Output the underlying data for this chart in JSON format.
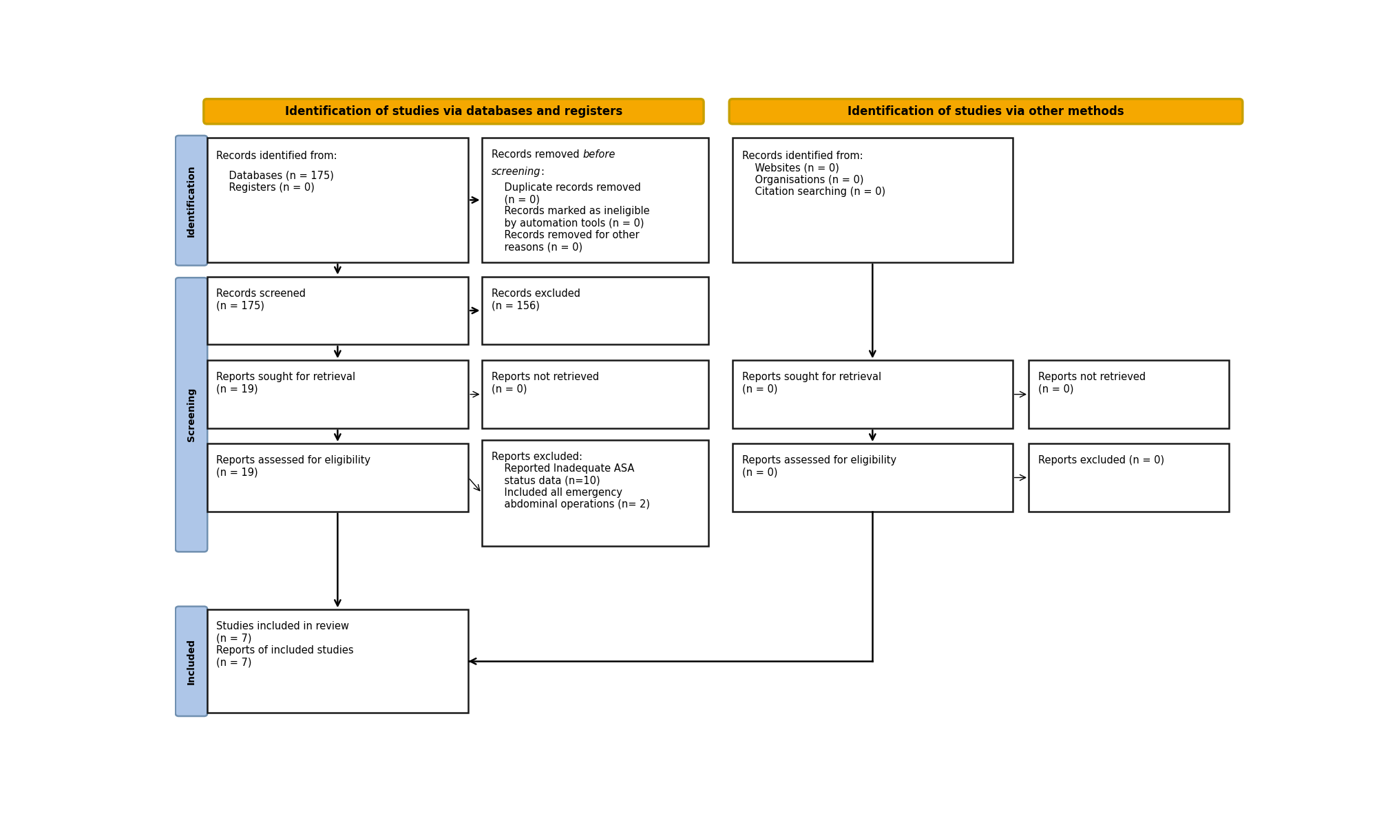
{
  "title_left": "Identification of studies via databases and registers",
  "title_right": "Identification of studies via other methods",
  "title_bg": "#F5A800",
  "title_border": "#C8A000",
  "sidebar_bg": "#AEC6E8",
  "sidebar_border": "#7090B0",
  "box_bg": "#FFFFFF",
  "box_border": "#1a1a1a",
  "arrow_color": "#000000",
  "fig_w": 20.32,
  "fig_h": 11.85,
  "sidebar_labels": [
    "Identification",
    "Screening",
    "Included"
  ],
  "box1_text_line1": "Records identified from:",
  "box1_text_rest": "    Databases (n = 175)\n    Registers (n = 0)",
  "box2_text_normal": "Records removed ",
  "box2_text_italic": "before\nscreening",
  "box2_text_colon": ":",
  "box2_text_body": "    Duplicate records removed\n    (n = 0)\n    Records marked as ineligible\n    by automation tools (n = 0)\n    Records removed for other\n    reasons (n = 0)",
  "box3_text": "Records screened\n(n = 175)",
  "box4_text": "Records excluded\n(n = 156)",
  "box5_text": "Reports sought for retrieval\n(n = 19)",
  "box6_text": "Reports not retrieved\n(n = 0)",
  "box7_text": "Reports assessed for eligibility\n(n = 19)",
  "box8_text": "Reports excluded:\n    Reported Inadequate ASA\n    status data (n=10)\n    Included all emergency\n    abdominal operations (n= 2)",
  "box9_text": "Records identified from:\n    Websites (n = 0)\n    Organisations (n = 0)\n    Citation searching (n = 0)",
  "box10_text": "Reports sought for retrieval\n(n = 0)",
  "box11_text": "Reports not retrieved\n(n = 0)",
  "box12_text": "Reports assessed for eligibility\n(n = 0)",
  "box13_text": "Reports excluded (n = 0)",
  "box14_text": "Studies included in review\n(n = 7)\nReports of included studies\n(n = 7)"
}
